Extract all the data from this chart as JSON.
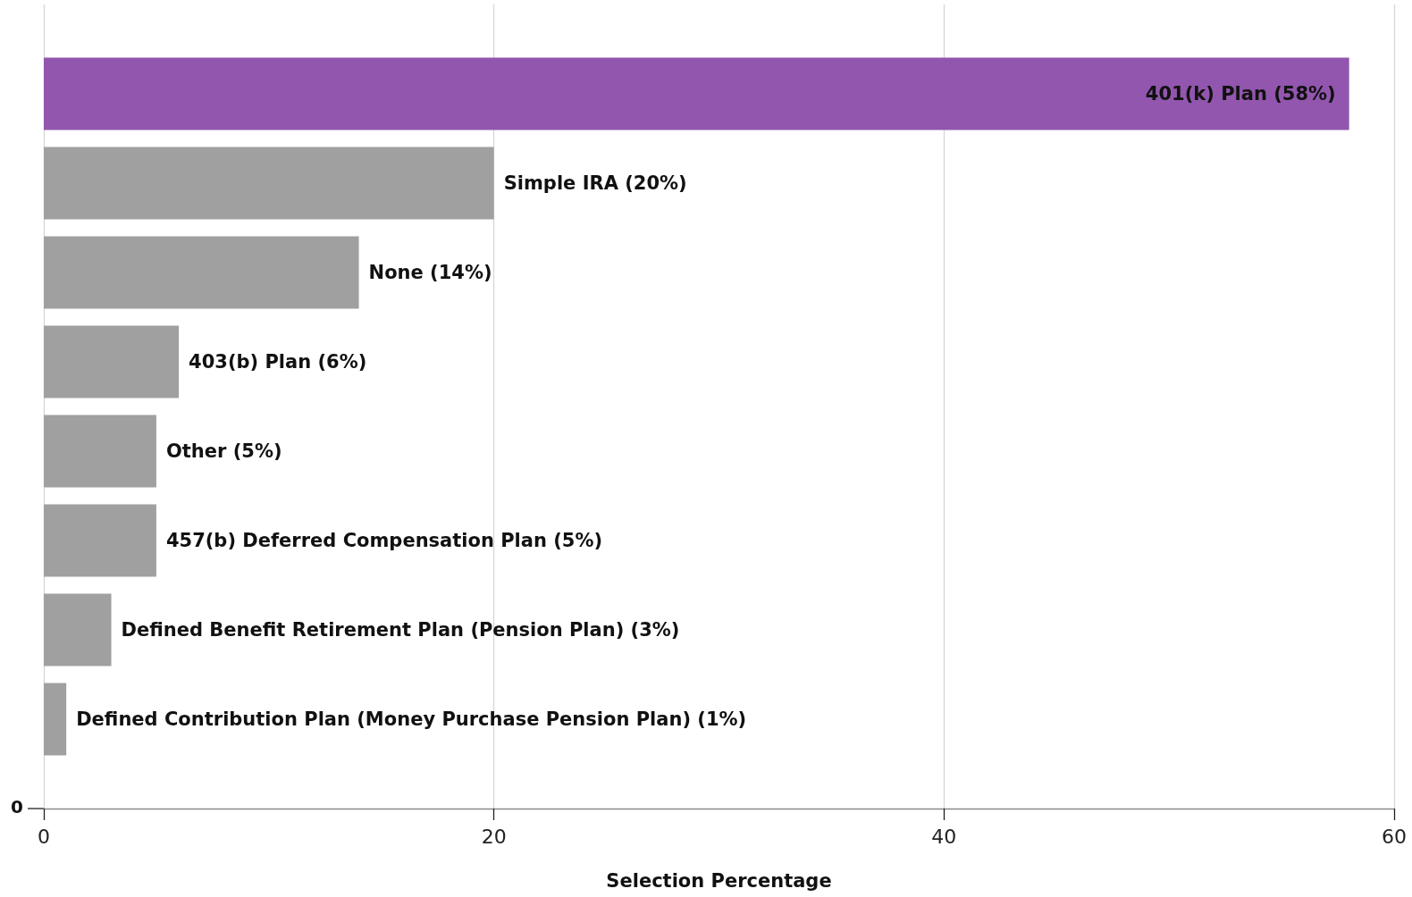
{
  "chart_data": {
    "type": "bar",
    "orientation": "horizontal",
    "xlabel": "Selection Percentage",
    "categories": [
      null,
      null,
      null,
      null,
      null,
      null,
      null,
      null
    ],
    "values": [
      58,
      20,
      14,
      6,
      5,
      5,
      3,
      1
    ],
    "colors": [
      "#9256ae",
      "#a0a0a0",
      "#a0a0a0",
      "#a0a0a0",
      "#a0a0a0",
      "#a0a0a0",
      "#a0a0a0",
      "#a0a0a0"
    ],
    "value_labels": [
      "401(k) Plan (58%)",
      "Simple IRA (20%)",
      "None (14%)",
      "403(b) Plan (6%)",
      "Other (5%)",
      "457(b) Deferred Compensation Plan (5%)",
      "Defined Benefit Retirement Plan (Pension Plan) (3%)",
      "Defined Contribution Plan (Money Purchase Pension Plan) (1%)"
    ],
    "xlim": [
      0,
      60
    ],
    "xticks": [
      0,
      20,
      40,
      60
    ],
    "grid": "x",
    "annotations": [
      "0"
    ]
  }
}
